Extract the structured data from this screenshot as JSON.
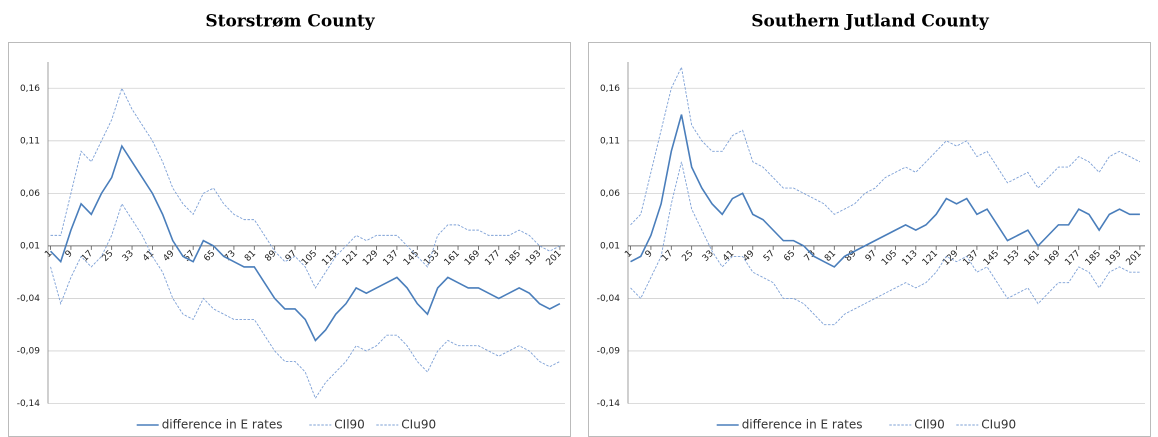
{
  "chart_data": [
    {
      "type": "line",
      "title": "Storstrøm County",
      "x": [
        1,
        5,
        9,
        13,
        17,
        21,
        25,
        29,
        33,
        37,
        41,
        45,
        49,
        53,
        57,
        61,
        65,
        69,
        73,
        77,
        81,
        85,
        89,
        93,
        97,
        101,
        105,
        109,
        113,
        117,
        121,
        125,
        129,
        133,
        137,
        141,
        145,
        149,
        153,
        157,
        161,
        165,
        169,
        173,
        177,
        181,
        185,
        189,
        193,
        197,
        201
      ],
      "xlim": [
        0,
        203
      ],
      "xticks": [
        1,
        9,
        17,
        25,
        33,
        41,
        49,
        57,
        65,
        73,
        81,
        89,
        97,
        105,
        113,
        121,
        129,
        137,
        145,
        153,
        161,
        169,
        177,
        185,
        193,
        201
      ],
      "ylim": [
        -0.14,
        0.185
      ],
      "yticks": [
        {
          "value": -0.14,
          "label": "-0,14"
        },
        {
          "value": -0.09,
          "label": "-0,09"
        },
        {
          "value": -0.04,
          "label": "-0,04"
        },
        {
          "value": 0.01,
          "label": "0,01"
        },
        {
          "value": 0.06,
          "label": "0,06"
        },
        {
          "value": 0.11,
          "label": "0,11"
        },
        {
          "value": 0.16,
          "label": "0,16"
        }
      ],
      "grid": true,
      "legend": "bottom",
      "series": [
        {
          "name": "difference in E rates",
          "color": "#4a7ebb",
          "dashed": false,
          "values": [
            0.005,
            -0.005,
            0.025,
            0.05,
            0.04,
            0.06,
            0.075,
            0.105,
            0.09,
            0.075,
            0.06,
            0.04,
            0.015,
            0.0,
            -0.005,
            0.015,
            0.01,
            0.0,
            -0.005,
            -0.01,
            -0.01,
            -0.025,
            -0.04,
            -0.05,
            -0.05,
            -0.06,
            -0.08,
            -0.07,
            -0.055,
            -0.045,
            -0.03,
            -0.035,
            -0.03,
            -0.025,
            -0.02,
            -0.03,
            -0.045,
            -0.055,
            -0.03,
            -0.02,
            -0.025,
            -0.03,
            -0.03,
            -0.035,
            -0.04,
            -0.035,
            -0.03,
            -0.035,
            -0.045,
            -0.05,
            -0.045
          ]
        },
        {
          "name": "CIl90",
          "color": "#7da0d6",
          "dashed": true,
          "values": [
            -0.01,
            -0.045,
            -0.02,
            0.0,
            -0.01,
            0.0,
            0.02,
            0.05,
            0.035,
            0.02,
            0.0,
            -0.015,
            -0.04,
            -0.055,
            -0.06,
            -0.04,
            -0.05,
            -0.055,
            -0.06,
            -0.06,
            -0.06,
            -0.075,
            -0.09,
            -0.1,
            -0.1,
            -0.11,
            -0.135,
            -0.12,
            -0.11,
            -0.1,
            -0.085,
            -0.09,
            -0.085,
            -0.075,
            -0.075,
            -0.085,
            -0.1,
            -0.11,
            -0.09,
            -0.08,
            -0.085,
            -0.085,
            -0.085,
            -0.09,
            -0.095,
            -0.09,
            -0.085,
            -0.09,
            -0.1,
            -0.105,
            -0.1
          ]
        },
        {
          "name": "CIu90",
          "color": "#7da0d6",
          "dashed": true,
          "values": [
            0.02,
            0.02,
            0.06,
            0.1,
            0.09,
            0.11,
            0.13,
            0.16,
            0.14,
            0.125,
            0.11,
            0.09,
            0.065,
            0.05,
            0.04,
            0.06,
            0.065,
            0.05,
            0.04,
            0.035,
            0.035,
            0.02,
            0.005,
            -0.005,
            0.0,
            -0.01,
            -0.03,
            -0.015,
            0.0,
            0.01,
            0.02,
            0.015,
            0.02,
            0.02,
            0.02,
            0.01,
            0.0,
            -0.01,
            0.02,
            0.03,
            0.03,
            0.025,
            0.025,
            0.02,
            0.02,
            0.02,
            0.025,
            0.02,
            0.01,
            0.005,
            0.01
          ]
        }
      ]
    },
    {
      "type": "line",
      "title": "Southern Jutland County",
      "x": [
        1,
        5,
        9,
        13,
        17,
        21,
        25,
        29,
        33,
        37,
        41,
        45,
        49,
        53,
        57,
        61,
        65,
        69,
        73,
        77,
        81,
        85,
        89,
        93,
        97,
        101,
        105,
        109,
        113,
        117,
        121,
        125,
        129,
        133,
        137,
        141,
        145,
        149,
        153,
        157,
        161,
        165,
        169,
        173,
        177,
        181,
        185,
        189,
        193,
        197,
        201
      ],
      "xlim": [
        0,
        203
      ],
      "xticks": [
        1,
        9,
        17,
        25,
        33,
        41,
        49,
        57,
        65,
        73,
        81,
        89,
        97,
        105,
        113,
        121,
        129,
        137,
        145,
        153,
        161,
        169,
        177,
        185,
        193,
        201
      ],
      "ylim": [
        -0.14,
        0.185
      ],
      "yticks": [
        {
          "value": -0.14,
          "label": "-0,14"
        },
        {
          "value": -0.09,
          "label": "-0,09"
        },
        {
          "value": -0.04,
          "label": "-0,04"
        },
        {
          "value": 0.01,
          "label": "0,01"
        },
        {
          "value": 0.06,
          "label": "0,06"
        },
        {
          "value": 0.11,
          "label": "0,11"
        },
        {
          "value": 0.16,
          "label": "0,16"
        }
      ],
      "grid": true,
      "legend": "bottom",
      "series": [
        {
          "name": "difference in E rates",
          "color": "#4a7ebb",
          "dashed": false,
          "values": [
            -0.005,
            0.0,
            0.02,
            0.05,
            0.1,
            0.135,
            0.085,
            0.065,
            0.05,
            0.04,
            0.055,
            0.06,
            0.04,
            0.035,
            0.025,
            0.015,
            0.015,
            0.01,
            0.0,
            -0.005,
            -0.01,
            0.0,
            0.005,
            0.01,
            0.015,
            0.02,
            0.025,
            0.03,
            0.025,
            0.03,
            0.04,
            0.055,
            0.05,
            0.055,
            0.04,
            0.045,
            0.03,
            0.015,
            0.02,
            0.025,
            0.01,
            0.02,
            0.03,
            0.03,
            0.045,
            0.04,
            0.025,
            0.04,
            0.045,
            0.04,
            0.04
          ]
        },
        {
          "name": "CIl90",
          "color": "#7da0d6",
          "dashed": true,
          "values": [
            -0.03,
            -0.04,
            -0.02,
            0.0,
            0.05,
            0.09,
            0.045,
            0.025,
            0.005,
            -0.01,
            0.0,
            0.0,
            -0.015,
            -0.02,
            -0.025,
            -0.04,
            -0.04,
            -0.045,
            -0.055,
            -0.065,
            -0.065,
            -0.055,
            -0.05,
            -0.045,
            -0.04,
            -0.035,
            -0.03,
            -0.025,
            -0.03,
            -0.025,
            -0.015,
            0.0,
            -0.005,
            0.0,
            -0.015,
            -0.01,
            -0.025,
            -0.04,
            -0.035,
            -0.03,
            -0.045,
            -0.035,
            -0.025,
            -0.025,
            -0.01,
            -0.015,
            -0.03,
            -0.015,
            -0.01,
            -0.015,
            -0.015
          ]
        },
        {
          "name": "CIu90",
          "color": "#7da0d6",
          "dashed": true,
          "values": [
            0.03,
            0.04,
            0.08,
            0.12,
            0.16,
            0.18,
            0.125,
            0.11,
            0.1,
            0.1,
            0.115,
            0.12,
            0.09,
            0.085,
            0.075,
            0.065,
            0.065,
            0.06,
            0.055,
            0.05,
            0.04,
            0.045,
            0.05,
            0.06,
            0.065,
            0.075,
            0.08,
            0.085,
            0.08,
            0.09,
            0.1,
            0.11,
            0.105,
            0.11,
            0.095,
            0.1,
            0.085,
            0.07,
            0.075,
            0.08,
            0.065,
            0.075,
            0.085,
            0.085,
            0.095,
            0.09,
            0.08,
            0.095,
            0.1,
            0.095,
            0.09
          ]
        }
      ]
    }
  ]
}
